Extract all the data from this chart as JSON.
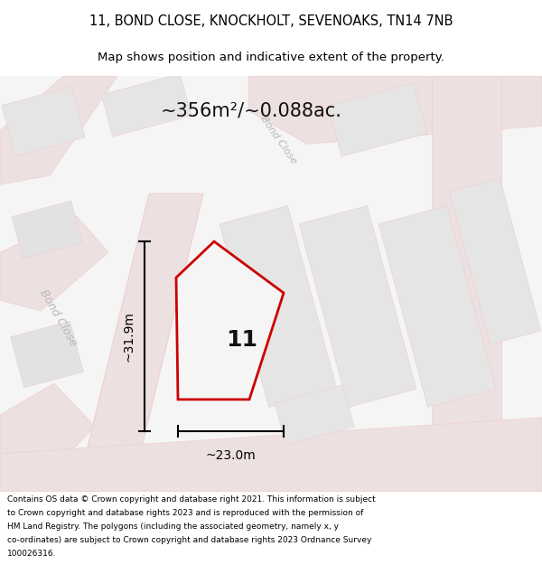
{
  "title_line1": "11, BOND CLOSE, KNOCKHOLT, SEVENOAKS, TN14 7NB",
  "title_line2": "Map shows position and indicative extent of the property.",
  "area_text": "~356m²/~0.088ac.",
  "property_number": "11",
  "dim_width": "~23.0m",
  "dim_height": "~31.9m",
  "street_label": "Bond Close",
  "street_label2": "Bond Close",
  "footer_lines": [
    "Contains OS data © Crown copyright and database right 2021. This information is subject",
    "to Crown copyright and database rights 2023 and is reproduced with the permission of",
    "HM Land Registry. The polygons (including the associated geometry, namely x, y",
    "co-ordinates) are subject to Crown copyright and database rights 2023 Ordnance Survey",
    "100026316."
  ],
  "bg_color": "#ffffff",
  "road_color": "#f0d0d0",
  "property_stroke": "#cc0000",
  "title_color": "#000000",
  "footer_color": "#000000"
}
